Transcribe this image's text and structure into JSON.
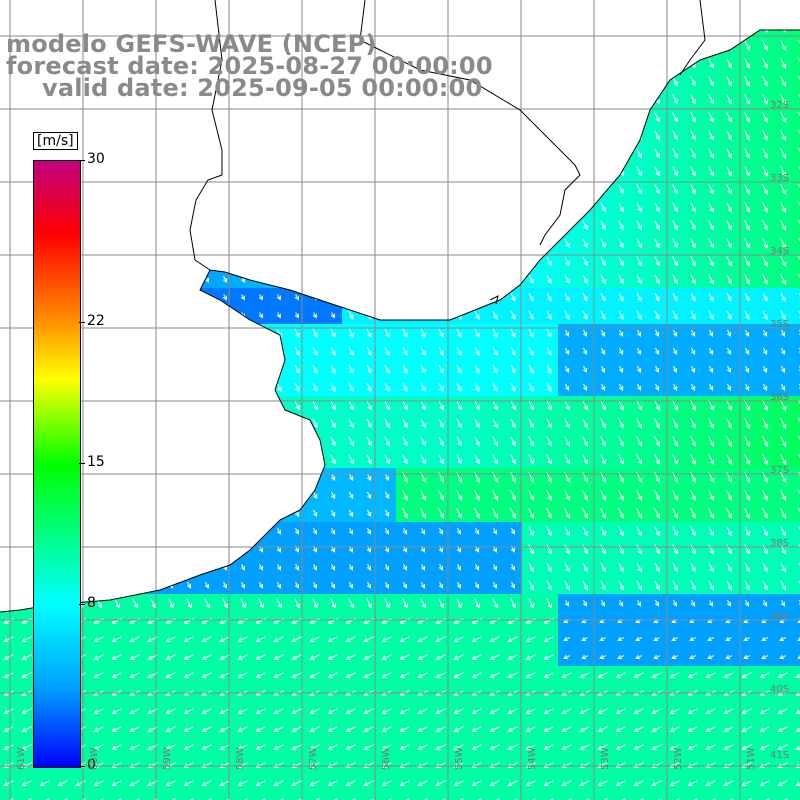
{
  "title": {
    "line1": "modelo GEFS-WAVE (NCEP)",
    "line2": "forecast date: 2025-08-27 00:00:00",
    "line3": "valid date: 2025-09-05 00:00:00"
  },
  "colorbar": {
    "unit": "[m/s]",
    "ticks": [
      "30",
      "22",
      "15",
      "8",
      "0"
    ],
    "tick_values": [
      30,
      22,
      15,
      8,
      0
    ],
    "min": 0,
    "max": 30,
    "colors": [
      "#0000ff",
      "#00a0ff",
      "#00ffff",
      "#00ff00",
      "#ffff00",
      "#ff8000",
      "#ff0000",
      "#c00080"
    ]
  },
  "map": {
    "longitude_labels": [
      "61W",
      "60W",
      "59W",
      "58W",
      "57W",
      "56W",
      "55W",
      "54W",
      "53W",
      "52W",
      "51W"
    ],
    "latitude_labels": [
      "32S",
      "33S",
      "34S",
      "35S",
      "36S",
      "37S",
      "38S",
      "39S",
      "40S",
      "41S"
    ],
    "land_color": "#ffffff",
    "grid_color": "#808080",
    "coast_color": "#000000"
  }
}
